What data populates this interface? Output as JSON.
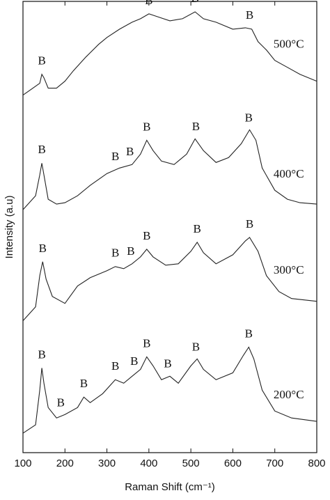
{
  "chart_data": {
    "type": "line",
    "xlabel": "Raman Shift (cm⁻¹)",
    "ylabel": "Intensity (a.u)",
    "xlim": [
      100,
      800
    ],
    "xticks": [
      100,
      200,
      300,
      400,
      500,
      600,
      700,
      800
    ],
    "ylim": [
      0,
      650
    ],
    "series": [
      {
        "name": "500°C",
        "color": "#222222",
        "x": [
          100,
          140,
          145,
          150,
          160,
          180,
          200,
          220,
          250,
          280,
          300,
          330,
          360,
          380,
          400,
          420,
          450,
          480,
          510,
          530,
          560,
          600,
          630,
          645,
          660,
          680,
          700,
          730,
          760,
          800
        ],
        "values": [
          515,
          532,
          545,
          540,
          525,
          525,
          535,
          550,
          570,
          588,
          598,
          610,
          620,
          625,
          632,
          628,
          622,
          625,
          635,
          625,
          620,
          610,
          612,
          610,
          592,
          580,
          565,
          555,
          545,
          535
        ],
        "annotations": [
          {
            "text": "B",
            "x": 145
          },
          {
            "text": "B",
            "x": 400
          },
          {
            "text": "B",
            "x": 510
          },
          {
            "text": "B",
            "x": 640
          }
        ]
      },
      {
        "name": "400°C",
        "color": "#222222",
        "x": [
          100,
          130,
          140,
          145,
          150,
          160,
          180,
          200,
          230,
          260,
          300,
          330,
          360,
          380,
          395,
          410,
          430,
          460,
          490,
          510,
          530,
          560,
          590,
          620,
          640,
          655,
          670,
          700,
          730,
          760,
          800
        ],
        "values": [
          350,
          370,
          400,
          417,
          400,
          365,
          358,
          360,
          370,
          385,
          402,
          410,
          415,
          430,
          450,
          435,
          420,
          415,
          430,
          452,
          435,
          418,
          425,
          445,
          465,
          450,
          410,
          378,
          365,
          360,
          358
        ],
        "annotations": [
          {
            "text": "B",
            "x": 145
          },
          {
            "text": "B",
            "x": 320
          },
          {
            "text": "B",
            "x": 355
          },
          {
            "text": "B",
            "x": 395
          },
          {
            "text": "B",
            "x": 512
          },
          {
            "text": "B",
            "x": 638
          }
        ]
      },
      {
        "name": "300°C",
        "color": "#222222",
        "x": [
          100,
          130,
          140,
          147,
          155,
          170,
          200,
          230,
          260,
          300,
          320,
          340,
          360,
          380,
          395,
          410,
          440,
          470,
          500,
          515,
          530,
          560,
          600,
          630,
          640,
          660,
          680,
          710,
          740,
          800
        ],
        "values": [
          190,
          210,
          255,
          275,
          250,
          225,
          215,
          240,
          252,
          262,
          268,
          265,
          272,
          282,
          293,
          282,
          270,
          272,
          290,
          303,
          288,
          272,
          285,
          305,
          310,
          290,
          255,
          232,
          222,
          218
        ],
        "annotations": [
          {
            "text": "B",
            "x": 147
          },
          {
            "text": "B",
            "x": 320
          },
          {
            "text": "B",
            "x": 357
          },
          {
            "text": "B",
            "x": 395
          },
          {
            "text": "B",
            "x": 515
          },
          {
            "text": "B",
            "x": 640
          }
        ]
      },
      {
        "name": "200°C",
        "color": "#222222",
        "x": [
          100,
          130,
          140,
          145,
          150,
          160,
          180,
          200,
          230,
          245,
          260,
          290,
          320,
          340,
          360,
          380,
          395,
          410,
          430,
          450,
          470,
          500,
          515,
          530,
          560,
          600,
          625,
          638,
          650,
          670,
          700,
          740,
          800
        ],
        "values": [
          28,
          40,
          90,
          122,
          100,
          65,
          50,
          55,
          65,
          80,
          72,
          85,
          105,
          100,
          110,
          120,
          138,
          125,
          105,
          110,
          100,
          125,
          135,
          120,
          105,
          115,
          140,
          152,
          135,
          90,
          60,
          50,
          45
        ],
        "annotations": [
          {
            "text": "B",
            "x": 145
          },
          {
            "text": "B",
            "x": 190
          },
          {
            "text": "B",
            "x": 245
          },
          {
            "text": "B",
            "x": 320
          },
          {
            "text": "B",
            "x": 365
          },
          {
            "text": "B",
            "x": 395
          },
          {
            "text": "B",
            "x": 445
          },
          {
            "text": "B",
            "x": 512
          },
          {
            "text": "B",
            "x": 638
          }
        ]
      }
    ]
  }
}
